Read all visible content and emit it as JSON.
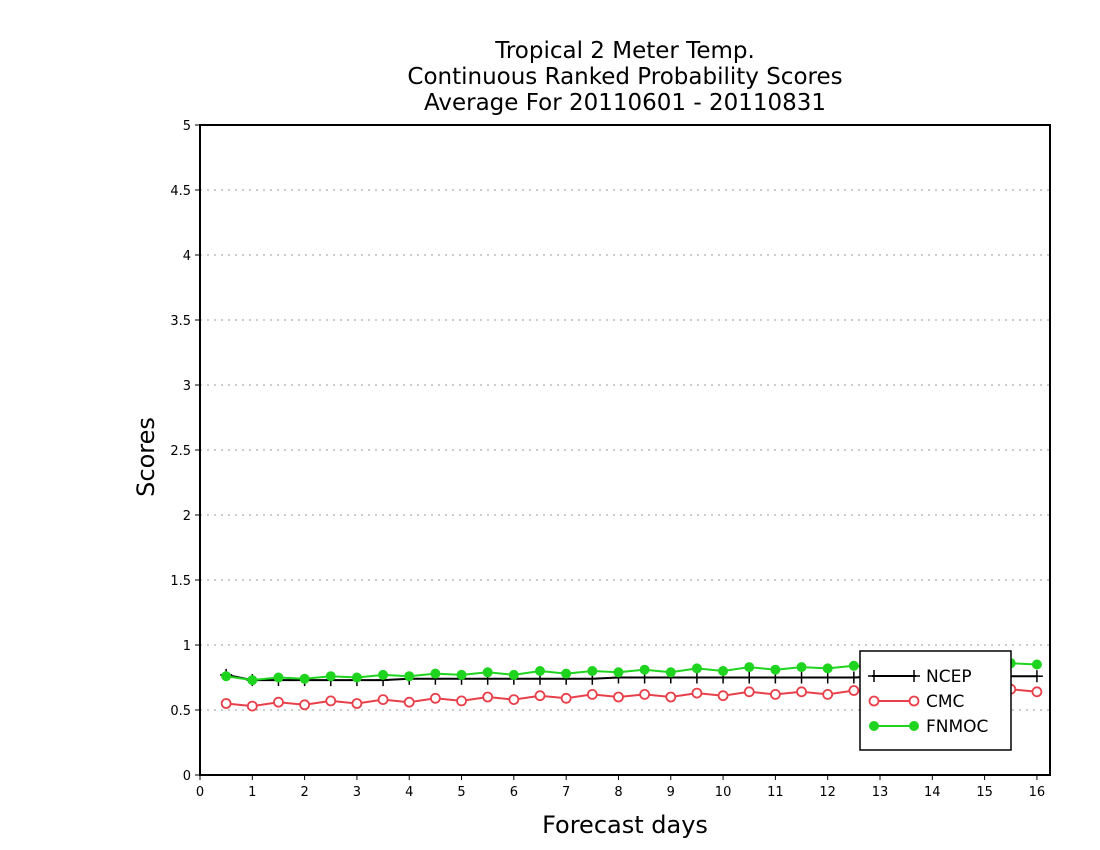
{
  "chart_data": {
    "type": "line",
    "title_lines": [
      "Tropical 2 Meter Temp.",
      "Continuous Ranked Probability Scores",
      "Average For 20110601 - 20110831"
    ],
    "xlabel": "Forecast days",
    "ylabel": "Scores",
    "xlim": [
      0,
      16.25
    ],
    "ylim": [
      0,
      5
    ],
    "x_ticks": [
      0,
      1,
      2,
      3,
      4,
      5,
      6,
      7,
      8,
      9,
      10,
      11,
      12,
      13,
      14,
      15,
      16
    ],
    "y_ticks": [
      0,
      0.5,
      1,
      1.5,
      2,
      2.5,
      3,
      3.5,
      4,
      4.5,
      5
    ],
    "y_tick_labels": [
      "0",
      "0.5",
      "1",
      "1.5",
      "2",
      "2.5",
      "3",
      "3.5",
      "4",
      "4.5",
      "5"
    ],
    "grid": "horizontal dotted",
    "legend_position": "lower-right",
    "x": [
      0.5,
      1,
      1.5,
      2,
      2.5,
      3,
      3.5,
      4,
      4.5,
      5,
      5.5,
      6,
      6.5,
      7,
      7.5,
      8,
      8.5,
      9,
      9.5,
      10,
      10.5,
      11,
      11.5,
      12,
      12.5,
      13,
      13.5,
      14,
      14.5,
      15,
      15.5,
      16
    ],
    "series": [
      {
        "name": "NCEP",
        "color": "#000000",
        "marker": "plus",
        "values": [
          0.77,
          0.73,
          0.73,
          0.73,
          0.73,
          0.73,
          0.73,
          0.74,
          0.74,
          0.74,
          0.74,
          0.74,
          0.74,
          0.74,
          0.74,
          0.75,
          0.75,
          0.75,
          0.75,
          0.75,
          0.75,
          0.75,
          0.75,
          0.75,
          0.75,
          0.76,
          0.76,
          0.76,
          0.76,
          0.76,
          0.76,
          0.76
        ]
      },
      {
        "name": "CMC",
        "color": "#e8404a",
        "marker": "open-circle",
        "values": [
          0.55,
          0.53,
          0.56,
          0.54,
          0.57,
          0.55,
          0.58,
          0.56,
          0.59,
          0.57,
          0.6,
          0.58,
          0.61,
          0.59,
          0.62,
          0.6,
          0.62,
          0.6,
          0.63,
          0.61,
          0.64,
          0.62,
          0.64,
          0.62,
          0.65,
          0.63,
          0.65,
          0.63,
          0.66,
          0.64,
          0.66,
          0.64
        ]
      },
      {
        "name": "FNMOC",
        "color": "#1ed41e",
        "marker": "filled-circle",
        "values": [
          0.76,
          0.73,
          0.75,
          0.74,
          0.76,
          0.75,
          0.77,
          0.76,
          0.78,
          0.77,
          0.79,
          0.77,
          0.8,
          0.78,
          0.8,
          0.79,
          0.81,
          0.79,
          0.82,
          0.8,
          0.83,
          0.81,
          0.83,
          0.82,
          0.84,
          0.82,
          0.85,
          0.83,
          0.86,
          0.84,
          0.86,
          0.85
        ]
      }
    ]
  }
}
